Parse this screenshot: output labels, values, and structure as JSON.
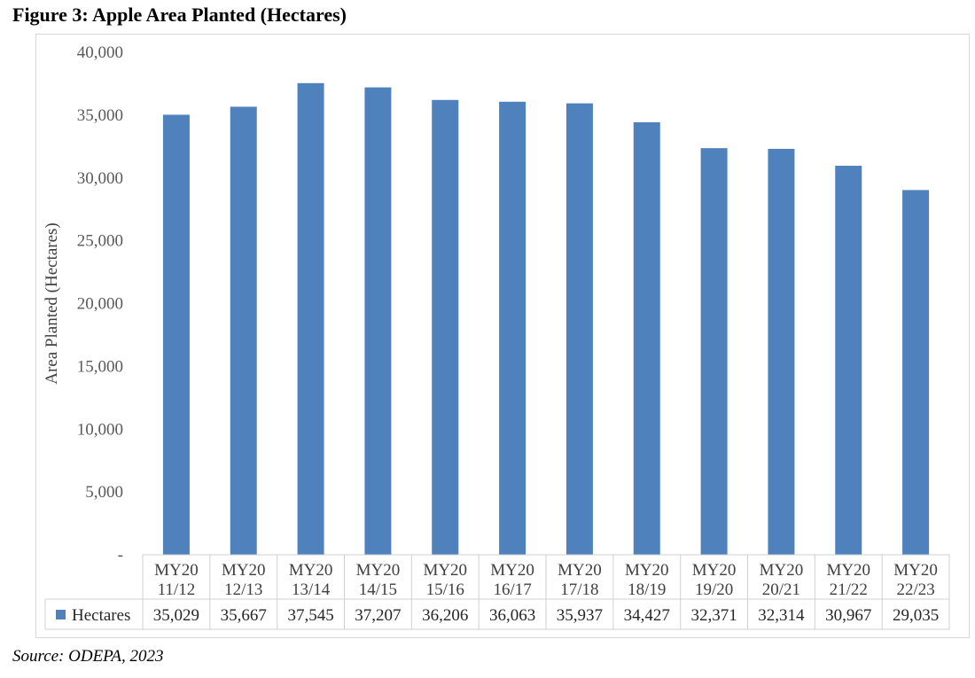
{
  "figure": {
    "title": "Figure 3: Apple Area Planted (Hectares)",
    "source": "Source: ODEPA, 2023"
  },
  "chart_data": {
    "type": "bar",
    "title": "",
    "ylabel": "Area Planted (Hectares)",
    "xlabel": "",
    "ylim": [
      0,
      40000
    ],
    "yticks": [
      "-",
      "5,000",
      "10,000",
      "15,000",
      "20,000",
      "25,000",
      "30,000",
      "35,000",
      "40,000"
    ],
    "categories": [
      [
        "MY20",
        "11/12"
      ],
      [
        "MY20",
        "12/13"
      ],
      [
        "MY20",
        "13/14"
      ],
      [
        "MY20",
        "14/15"
      ],
      [
        "MY20",
        "15/16"
      ],
      [
        "MY20",
        "16/17"
      ],
      [
        "MY20",
        "17/18"
      ],
      [
        "MY20",
        "18/19"
      ],
      [
        "MY20",
        "19/20"
      ],
      [
        "MY20",
        "20/21"
      ],
      [
        "MY20",
        "21/22"
      ],
      [
        "MY20",
        "22/23"
      ]
    ],
    "series": [
      {
        "name": "Hectares",
        "color": "#4f81bd",
        "values": [
          35029,
          35667,
          37545,
          37207,
          36206,
          36063,
          35937,
          34427,
          32371,
          32314,
          30967,
          29035
        ],
        "value_labels": [
          "35,029",
          "35,667",
          "37,545",
          "37,207",
          "36,206",
          "36,063",
          "35,937",
          "34,427",
          "32,371",
          "32,314",
          "30,967",
          "29,035"
        ]
      }
    ],
    "grid": false,
    "legend": "data-table"
  }
}
